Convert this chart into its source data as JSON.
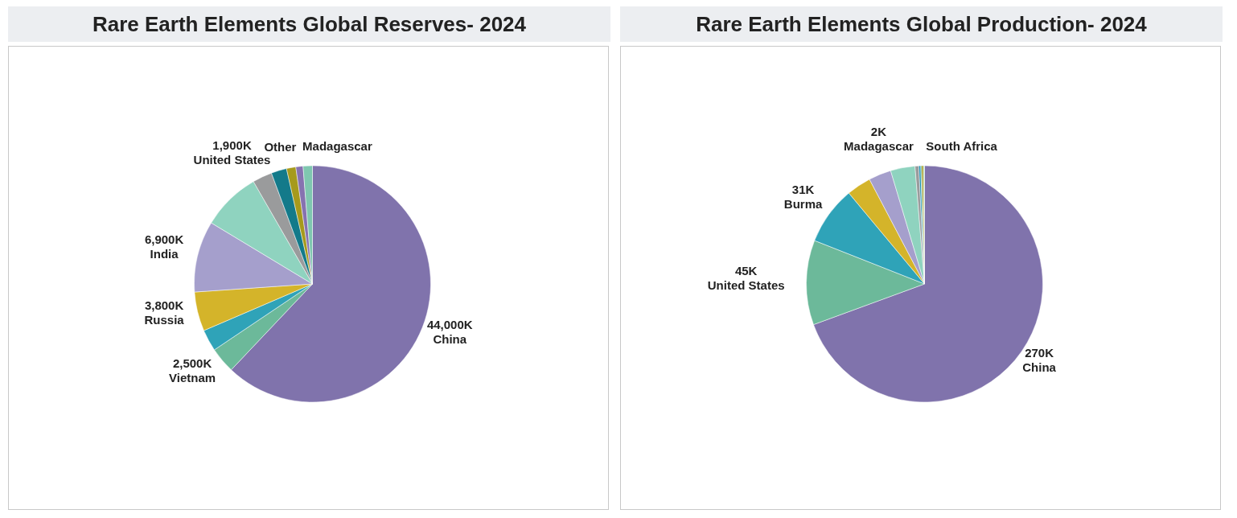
{
  "chart_data": [
    {
      "type": "pie",
      "title": "Rare Earth Elements Global Reserves- 2024",
      "categories": [
        "China",
        "Vietnam",
        null,
        "Russia",
        "India",
        null,
        "United States",
        null,
        null,
        "Other",
        "Madagascar"
      ],
      "values": [
        44000,
        2500,
        2100,
        3800,
        6900,
        5700,
        1900,
        1500,
        900,
        700,
        900
      ],
      "value_labels": [
        "44,000K",
        "2,500K",
        null,
        "3,800K",
        "6,900K",
        null,
        "1,900K",
        null,
        null,
        null,
        null
      ],
      "colors": [
        "#8073ac",
        "#6cb99a",
        "#2fa3b8",
        "#d4b42a",
        "#a59fcc",
        "#8fd3bf",
        "#9a9b9c",
        "#137a8a",
        "#a69a1c",
        "#8672b0",
        "#7fc7b0"
      ]
    },
    {
      "type": "pie",
      "title": "Rare Earth Elements Global Production- 2024",
      "categories": [
        "China",
        "United States",
        "Burma",
        null,
        null,
        null,
        "Madagascar",
        null,
        null,
        null,
        "South Africa"
      ],
      "values": [
        270,
        45,
        31,
        13,
        12,
        13,
        2,
        1,
        0.5,
        1,
        0.5
      ],
      "value_labels": [
        "270K",
        "45K",
        "31K",
        null,
        null,
        null,
        "2K",
        null,
        null,
        null,
        null
      ],
      "colors": [
        "#8073ac",
        "#6cb99a",
        "#2fa3b8",
        "#d4b42a",
        "#a59fcc",
        "#8fd3bf",
        "#9a9b9c",
        "#1a8fb0",
        "#2f8f5a",
        "#a69a1c",
        "#8fd3bf"
      ]
    }
  ]
}
